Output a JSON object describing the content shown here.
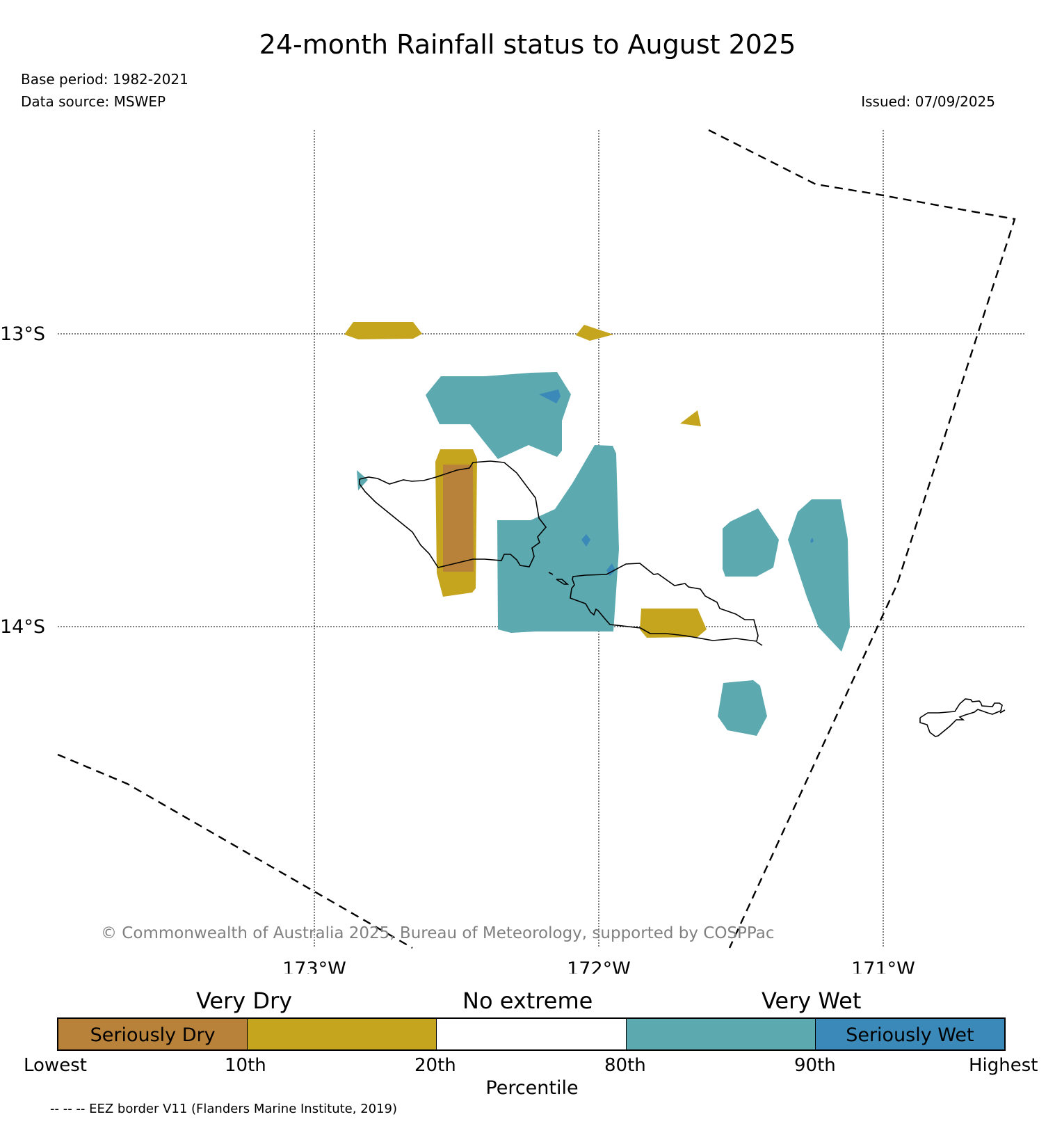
{
  "title": "24-month Rainfall status to August 2025",
  "base_period": "Base period: 1982-2021",
  "data_source": "Data source: MSWEP",
  "issued": "Issued: 07/09/2025",
  "copyright": "© Commonwealth of Australia 2025, Bureau of Meteorology, supported by COSPPac",
  "map": {
    "lat_labels": [
      "13°S",
      "14°S"
    ],
    "lon_labels": [
      "173°W",
      "172°W",
      "171°W"
    ]
  },
  "legend": {
    "categories": [
      "Very Dry",
      "No extreme",
      "Very Wet"
    ],
    "segments": [
      {
        "label": "Seriously Dry",
        "color": "#b9823a"
      },
      {
        "label": "",
        "color": "#c6a51e"
      },
      {
        "label": "",
        "color": "#ffffff"
      },
      {
        "label": "",
        "color": "#5ca9b0"
      },
      {
        "label": "Seriously Wet",
        "color": "#3a89b9"
      }
    ],
    "ticks": [
      "Lowest",
      "10th",
      "20th",
      "80th",
      "90th",
      "Highest"
    ],
    "axis_label": "Percentile"
  },
  "eez_note": "-- -- -- EEZ border V11 (Flanders Marine Institute, 2019)",
  "colors": {
    "seriously_dry": "#b9823a",
    "very_dry": "#c6a51e",
    "very_wet": "#5ca9b0",
    "seriously_wet": "#3a89b9"
  }
}
